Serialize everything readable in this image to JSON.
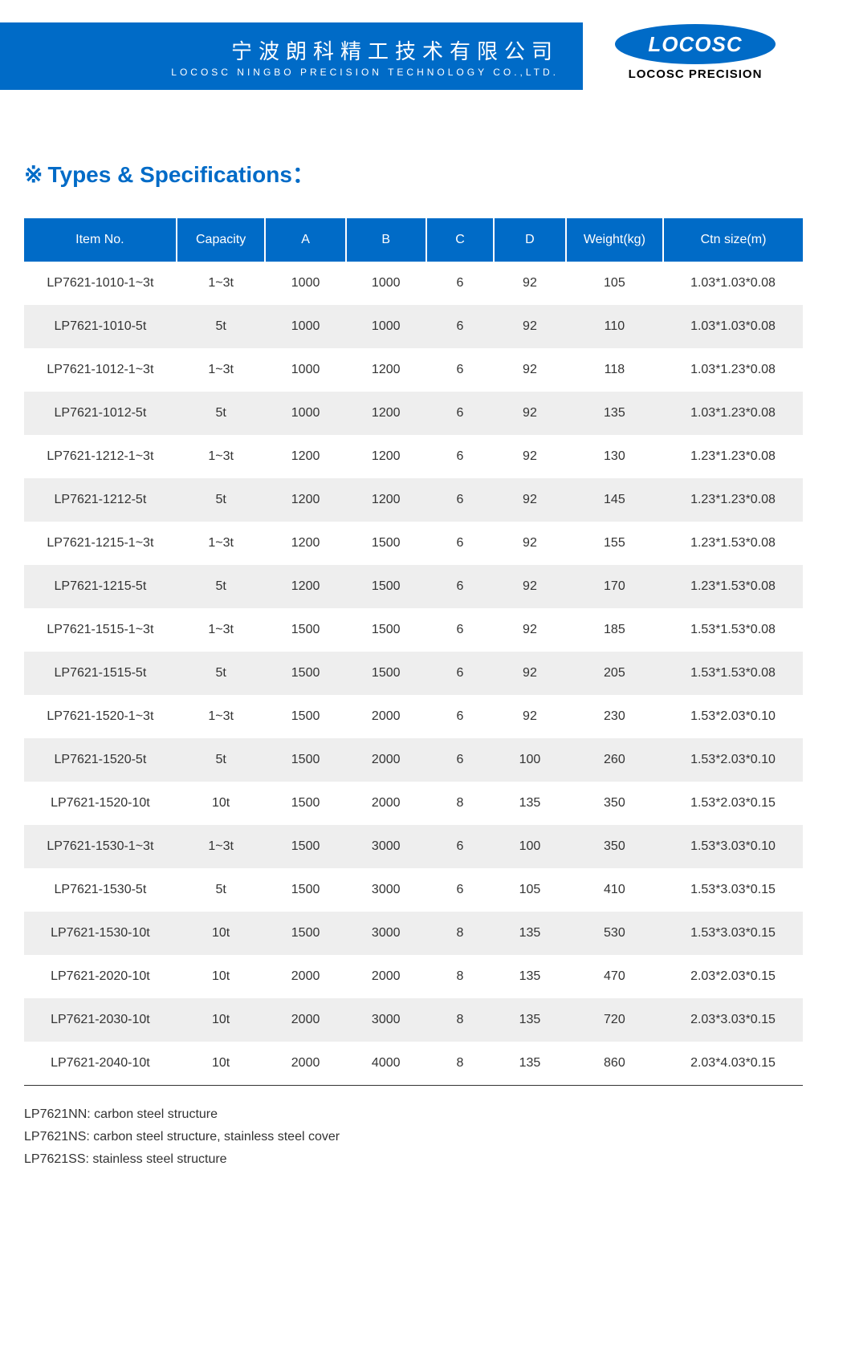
{
  "header": {
    "company_cn": "宁波朗科精工技术有限公司",
    "company_en": "LOCOSC NINGBO PRECISION TECHNOLOGY CO.,LTD.",
    "logo_text": "LOCOSC",
    "logo_sub": "LOCOSC PRECISION"
  },
  "section": {
    "marker": "※",
    "title": "Types & Specifications："
  },
  "table": {
    "columns": [
      "Item No.",
      "Capacity",
      "A",
      "B",
      "C",
      "D",
      "Weight(kg)",
      "Ctn size(m)"
    ],
    "rows": [
      [
        "LP7621-1010-1~3t",
        "1~3t",
        "1000",
        "1000",
        "6",
        "92",
        "105",
        "1.03*1.03*0.08"
      ],
      [
        "LP7621-1010-5t",
        "5t",
        "1000",
        "1000",
        "6",
        "92",
        "110",
        "1.03*1.03*0.08"
      ],
      [
        "LP7621-1012-1~3t",
        "1~3t",
        "1000",
        "1200",
        "6",
        "92",
        "118",
        "1.03*1.23*0.08"
      ],
      [
        "LP7621-1012-5t",
        "5t",
        "1000",
        "1200",
        "6",
        "92",
        "135",
        "1.03*1.23*0.08"
      ],
      [
        "LP7621-1212-1~3t",
        "1~3t",
        "1200",
        "1200",
        "6",
        "92",
        "130",
        "1.23*1.23*0.08"
      ],
      [
        "LP7621-1212-5t",
        "5t",
        "1200",
        "1200",
        "6",
        "92",
        "145",
        "1.23*1.23*0.08"
      ],
      [
        "LP7621-1215-1~3t",
        "1~3t",
        "1200",
        "1500",
        "6",
        "92",
        "155",
        "1.23*1.53*0.08"
      ],
      [
        "LP7621-1215-5t",
        "5t",
        "1200",
        "1500",
        "6",
        "92",
        "170",
        "1.23*1.53*0.08"
      ],
      [
        "LP7621-1515-1~3t",
        "1~3t",
        "1500",
        "1500",
        "6",
        "92",
        "185",
        "1.53*1.53*0.08"
      ],
      [
        "LP7621-1515-5t",
        "5t",
        "1500",
        "1500",
        "6",
        "92",
        "205",
        "1.53*1.53*0.08"
      ],
      [
        "LP7621-1520-1~3t",
        "1~3t",
        "1500",
        "2000",
        "6",
        "92",
        "230",
        "1.53*2.03*0.10"
      ],
      [
        "LP7621-1520-5t",
        "5t",
        "1500",
        "2000",
        "6",
        "100",
        "260",
        "1.53*2.03*0.10"
      ],
      [
        "LP7621-1520-10t",
        "10t",
        "1500",
        "2000",
        "8",
        "135",
        "350",
        "1.53*2.03*0.15"
      ],
      [
        "LP7621-1530-1~3t",
        "1~3t",
        "1500",
        "3000",
        "6",
        "100",
        "350",
        "1.53*3.03*0.10"
      ],
      [
        "LP7621-1530-5t",
        "5t",
        "1500",
        "3000",
        "6",
        "105",
        "410",
        "1.53*3.03*0.15"
      ],
      [
        "LP7621-1530-10t",
        "10t",
        "1500",
        "3000",
        "8",
        "135",
        "530",
        "1.53*3.03*0.15"
      ],
      [
        "LP7621-2020-10t",
        "10t",
        "2000",
        "2000",
        "8",
        "135",
        "470",
        "2.03*2.03*0.15"
      ],
      [
        "LP7621-2030-10t",
        "10t",
        "2000",
        "3000",
        "8",
        "135",
        "720",
        "2.03*3.03*0.15"
      ],
      [
        "LP7621-2040-10t",
        "10t",
        "2000",
        "4000",
        "8",
        "135",
        "860",
        "2.03*4.03*0.15"
      ]
    ]
  },
  "notes": [
    "LP7621NN: carbon steel structure",
    "LP7621NS: carbon steel structure, stainless steel cover",
    "LP7621SS: stainless steel structure"
  ],
  "style": {
    "brand_color": "#006bc7",
    "row_alt_bg": "#eeeeee",
    "text_color": "#333333"
  }
}
